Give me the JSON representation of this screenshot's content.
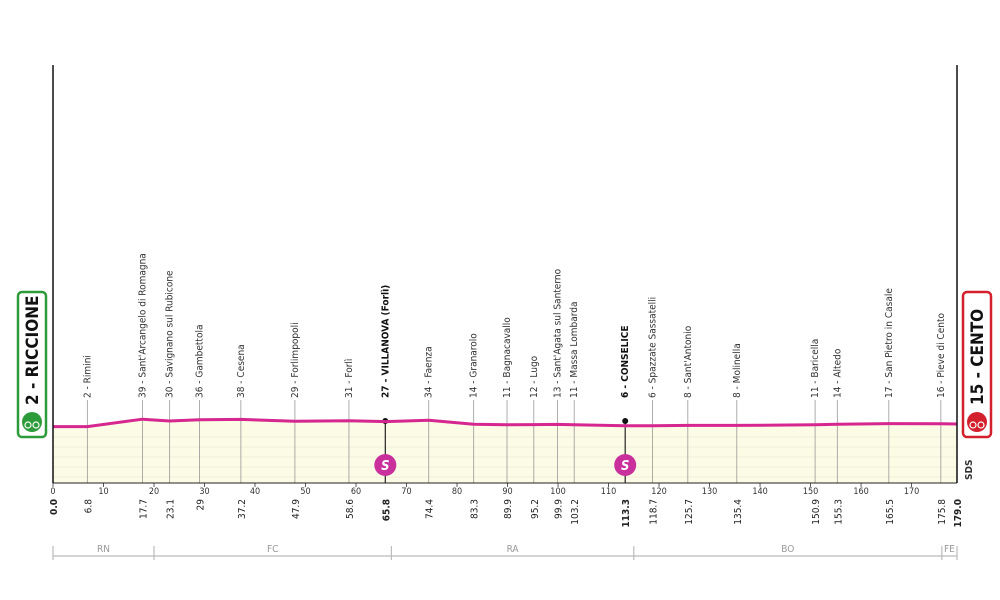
{
  "chart_data": {
    "type": "profile",
    "xlim": [
      0,
      179
    ],
    "xticks": [
      0,
      10,
      20,
      30,
      40,
      50,
      60,
      70,
      80,
      90,
      100,
      110,
      120,
      130,
      140,
      150,
      160,
      170
    ],
    "line_color": "#d6268f",
    "fill_color": "#fbfbe6",
    "sprint_symbol": "S",
    "logo": "SDS",
    "waypoints": [
      {
        "name": "2 - RICCIONE",
        "km": {
          "value": 0,
          "label": "0.0"
        },
        "alt": 2
      },
      {
        "name": "2 - Rimini",
        "km": 6.8,
        "alt": 2
      },
      {
        "name": "39 - Sant'Arcangelo di Romagna",
        "km": 17.7,
        "alt": 39
      },
      {
        "name": "30 - Savignano sul Rubicone",
        "km": 23.1,
        "alt": 30
      },
      {
        "name": "36 - Gambettola",
        "km": 29.0,
        "alt": 36
      },
      {
        "name": "38 - Cesena",
        "km": 37.2,
        "alt": 38
      },
      {
        "name": "29 - Forlimpopoli",
        "km": 47.9,
        "alt": 29
      },
      {
        "name": "31 - Forlì",
        "km": 58.6,
        "alt": 31
      },
      {
        "name": "27 - VILLANOVA (Forlì)",
        "km": 65.8,
        "alt": 27,
        "sprint": true
      },
      {
        "name": "34 - Faenza",
        "km": 74.4,
        "alt": 34
      },
      {
        "name": "14 - Granarolo",
        "km": 83.3,
        "alt": 14
      },
      {
        "name": "11 - Bagnacavallo",
        "km": 89.9,
        "alt": 11
      },
      {
        "name": "12 - Lugo",
        "km": 95.2,
        "alt": 12
      },
      {
        "name": "13 - Sant'Agata sul Santerno",
        "km": 99.9,
        "alt": 13
      },
      {
        "name": "11 - Massa Lombarda",
        "km": 103.2,
        "alt": 11
      },
      {
        "name": "6 - CONSELICE",
        "km": 113.3,
        "alt": 6,
        "sprint": true
      },
      {
        "name": "6 - Spazzate Sassatelli",
        "km": 118.7,
        "alt": 6
      },
      {
        "name": "8 - Sant'Antonio",
        "km": 125.7,
        "alt": 8
      },
      {
        "name": "8 - Molinella",
        "km": 135.4,
        "alt": 8
      },
      {
        "name": "11 - Baricella",
        "km": 150.9,
        "alt": 11
      },
      {
        "name": "14 - Altedo",
        "km": 155.3,
        "alt": 14
      },
      {
        "name": "17 - San Pietro in Casale",
        "km": 165.5,
        "alt": 17
      },
      {
        "name": "16 - Pieve di Cento",
        "km": 175.8,
        "alt": 16
      },
      {
        "name": "15 - CENTO",
        "km": {
          "value": 179,
          "label": "179.0"
        },
        "alt": 15
      }
    ],
    "provinces": [
      {
        "name": "RN",
        "from": 0,
        "to": 20
      },
      {
        "name": "FC",
        "from": 20,
        "to": 67
      },
      {
        "name": "RA",
        "from": 67,
        "to": 115
      },
      {
        "name": "BO",
        "from": 115,
        "to": 176
      },
      {
        "name": "FE",
        "from": 176,
        "to": 179
      }
    ]
  }
}
